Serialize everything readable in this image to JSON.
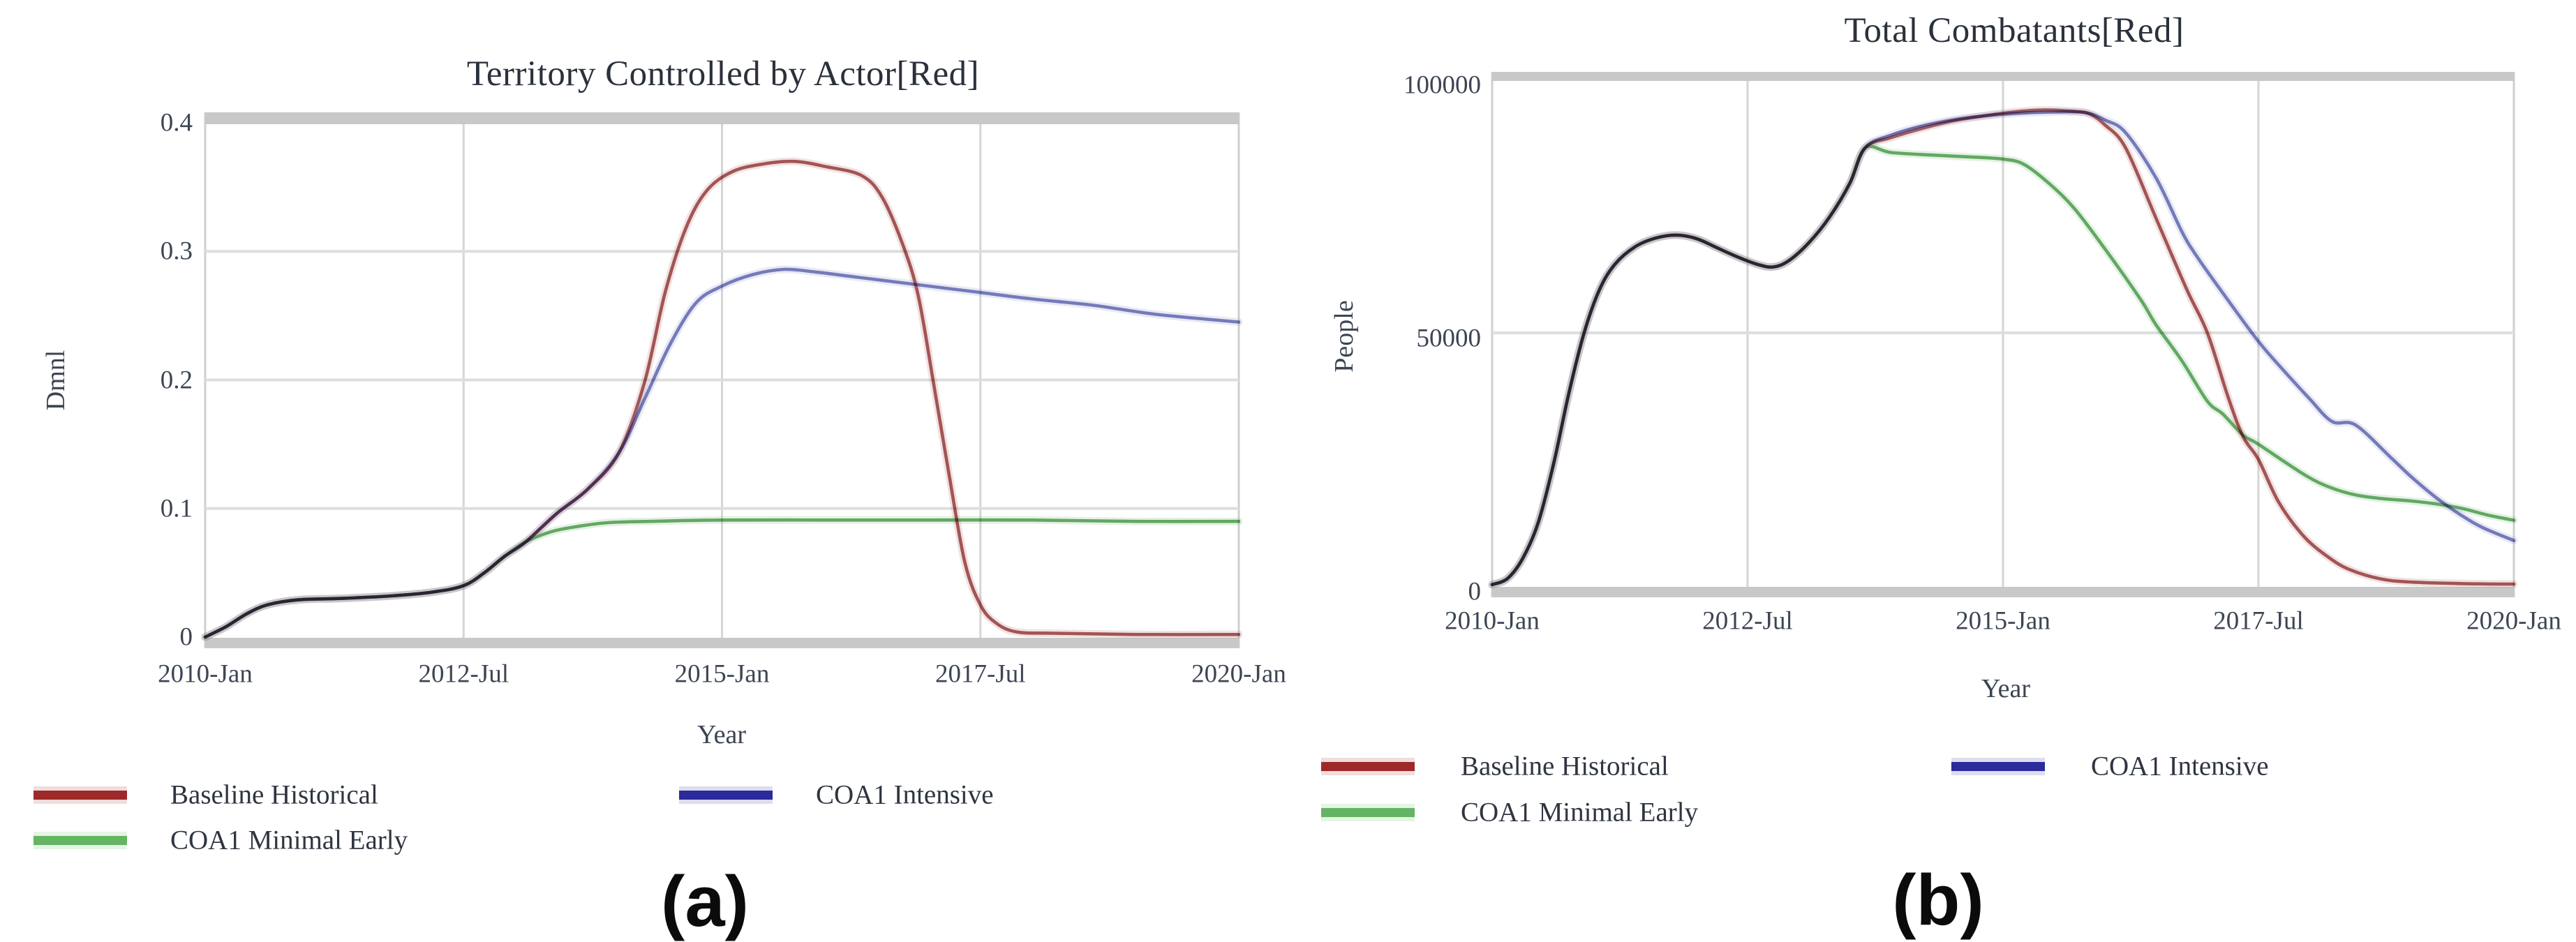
{
  "figure": {
    "background": "#ffffff",
    "grid_color_h": "#dedede",
    "grid_color_v": "#d5d5d5",
    "axis_band_color": "#c8c8c8",
    "frame_color": "#cfcfcf"
  },
  "chart_data": [
    {
      "id": "a",
      "type": "line",
      "title": "Territory Controlled by Actor[Red]",
      "caption": "(a)",
      "xlabel": "Year",
      "ylabel": "Dmnl",
      "xlim": [
        2010,
        2020
      ],
      "ylim": [
        0,
        0.4
      ],
      "grid": true,
      "legend_position": "below-left-two-columns",
      "xticks": [
        {
          "v": 2010,
          "label": "2010-Jan"
        },
        {
          "v": 2012.5,
          "label": "2012-Jul"
        },
        {
          "v": 2015,
          "label": "2015-Jan"
        },
        {
          "v": 2017.5,
          "label": "2017-Jul"
        },
        {
          "v": 2020,
          "label": "2020-Jan"
        }
      ],
      "yticks": [
        {
          "v": 0,
          "label": "0"
        },
        {
          "v": 0.1,
          "label": "0.1"
        },
        {
          "v": 0.2,
          "label": "0.2"
        },
        {
          "v": 0.3,
          "label": "0.3"
        },
        {
          "v": 0.4,
          "label": "0.4"
        }
      ],
      "draw_order": [
        2,
        0,
        1
      ],
      "series": [
        {
          "name": "Baseline Historical",
          "line_color": "#ad5f5f",
          "legend_color": "#9e2929",
          "points": [
            [
              2010,
              0
            ],
            [
              2010.2,
              0.008
            ],
            [
              2010.4,
              0.018
            ],
            [
              2010.6,
              0.025
            ],
            [
              2010.9,
              0.029
            ],
            [
              2011.3,
              0.03
            ],
            [
              2011.8,
              0.032
            ],
            [
              2012.2,
              0.035
            ],
            [
              2012.5,
              0.04
            ],
            [
              2012.7,
              0.05
            ],
            [
              2012.9,
              0.063
            ],
            [
              2013.1,
              0.074
            ],
            [
              2013.4,
              0.096
            ],
            [
              2013.7,
              0.115
            ],
            [
              2014,
              0.143
            ],
            [
              2014.25,
              0.198
            ],
            [
              2014.45,
              0.268
            ],
            [
              2014.65,
              0.318
            ],
            [
              2014.85,
              0.347
            ],
            [
              2015.1,
              0.362
            ],
            [
              2015.4,
              0.368
            ],
            [
              2015.7,
              0.37
            ],
            [
              2016,
              0.366
            ],
            [
              2016.35,
              0.359
            ],
            [
              2016.55,
              0.342
            ],
            [
              2016.75,
              0.305
            ],
            [
              2016.9,
              0.265
            ],
            [
              2017.05,
              0.196
            ],
            [
              2017.2,
              0.125
            ],
            [
              2017.35,
              0.058
            ],
            [
              2017.5,
              0.025
            ],
            [
              2017.65,
              0.011
            ],
            [
              2017.85,
              0.004
            ],
            [
              2018.2,
              0.003
            ],
            [
              2019,
              0.002
            ],
            [
              2020,
              0.002
            ]
          ]
        },
        {
          "name": "COA1 Intensive",
          "line_color": "#8085c2",
          "legend_color": "#2b2b9b",
          "points": [
            [
              2010,
              0
            ],
            [
              2010.2,
              0.008
            ],
            [
              2010.4,
              0.018
            ],
            [
              2010.6,
              0.025
            ],
            [
              2010.9,
              0.029
            ],
            [
              2011.3,
              0.03
            ],
            [
              2011.8,
              0.032
            ],
            [
              2012.2,
              0.035
            ],
            [
              2012.5,
              0.04
            ],
            [
              2012.7,
              0.05
            ],
            [
              2012.9,
              0.063
            ],
            [
              2013.1,
              0.074
            ],
            [
              2013.4,
              0.096
            ],
            [
              2013.7,
              0.115
            ],
            [
              2014,
              0.143
            ],
            [
              2014.25,
              0.185
            ],
            [
              2014.5,
              0.228
            ],
            [
              2014.75,
              0.26
            ],
            [
              2015,
              0.273
            ],
            [
              2015.3,
              0.282
            ],
            [
              2015.6,
              0.286
            ],
            [
              2015.9,
              0.284
            ],
            [
              2016.3,
              0.28
            ],
            [
              2017,
              0.273
            ],
            [
              2017.5,
              0.268
            ],
            [
              2018,
              0.263
            ],
            [
              2018.6,
              0.258
            ],
            [
              2019.2,
              0.251
            ],
            [
              2020,
              0.245
            ]
          ]
        },
        {
          "name": "COA1 Minimal Early",
          "line_color": "#6db26d",
          "legend_color": "#63b463",
          "points": [
            [
              2010,
              0
            ],
            [
              2010.2,
              0.008
            ],
            [
              2010.4,
              0.018
            ],
            [
              2010.6,
              0.025
            ],
            [
              2010.9,
              0.029
            ],
            [
              2011.3,
              0.03
            ],
            [
              2011.8,
              0.032
            ],
            [
              2012.2,
              0.035
            ],
            [
              2012.5,
              0.04
            ],
            [
              2012.7,
              0.05
            ],
            [
              2012.9,
              0.063
            ],
            [
              2013.1,
              0.074
            ],
            [
              2013.35,
              0.082
            ],
            [
              2013.6,
              0.086
            ],
            [
              2013.9,
              0.089
            ],
            [
              2014.3,
              0.09
            ],
            [
              2015,
              0.091
            ],
            [
              2016,
              0.091
            ],
            [
              2017,
              0.091
            ],
            [
              2018,
              0.091
            ],
            [
              2019,
              0.09
            ],
            [
              2020,
              0.09
            ]
          ]
        }
      ]
    },
    {
      "id": "b",
      "type": "line",
      "title": "Total Combatants[Red]",
      "caption": "(b)",
      "xlabel": "Year",
      "ylabel": "People",
      "xlim": [
        2010,
        2020
      ],
      "ylim": [
        0,
        100000
      ],
      "grid": true,
      "legend_position": "below-left-two-columns",
      "xticks": [
        {
          "v": 2010,
          "label": "2010-Jan"
        },
        {
          "v": 2012.5,
          "label": "2012-Jul"
        },
        {
          "v": 2015,
          "label": "2015-Jan"
        },
        {
          "v": 2017.5,
          "label": "2017-Jul"
        },
        {
          "v": 2020,
          "label": "2020-Jan"
        }
      ],
      "yticks": [
        {
          "v": 0,
          "label": "0"
        },
        {
          "v": 50000,
          "label": "50000"
        },
        {
          "v": 100000,
          "label": "100000"
        }
      ],
      "draw_order": [
        2,
        0,
        1
      ],
      "series": [
        {
          "name": "Baseline Historical",
          "line_color": "#ad5f5f",
          "legend_color": "#9e2929",
          "points": [
            [
              2010,
              300
            ],
            [
              2010.15,
              1500
            ],
            [
              2010.3,
              5500
            ],
            [
              2010.45,
              12500
            ],
            [
              2010.6,
              24000
            ],
            [
              2010.75,
              38000
            ],
            [
              2010.9,
              50000
            ],
            [
              2011.05,
              58500
            ],
            [
              2011.2,
              63500
            ],
            [
              2011.4,
              67000
            ],
            [
              2011.6,
              68700
            ],
            [
              2011.8,
              69300
            ],
            [
              2012,
              68600
            ],
            [
              2012.2,
              66800
            ],
            [
              2012.4,
              65000
            ],
            [
              2012.6,
              63500
            ],
            [
              2012.75,
              63000
            ],
            [
              2012.9,
              64200
            ],
            [
              2013.1,
              67800
            ],
            [
              2013.3,
              72800
            ],
            [
              2013.5,
              79500
            ],
            [
              2013.65,
              86500
            ],
            [
              2013.9,
              88500
            ],
            [
              2014.2,
              90300
            ],
            [
              2014.5,
              91800
            ],
            [
              2014.8,
              92800
            ],
            [
              2015.1,
              93600
            ],
            [
              2015.4,
              94000
            ],
            [
              2015.7,
              93700
            ],
            [
              2015.85,
              93200
            ],
            [
              2016,
              91000
            ],
            [
              2016.2,
              86500
            ],
            [
              2016.5,
              72500
            ],
            [
              2016.8,
              58500
            ],
            [
              2017,
              50000
            ],
            [
              2017.2,
              37500
            ],
            [
              2017.35,
              29500
            ],
            [
              2017.5,
              25000
            ],
            [
              2017.7,
              16500
            ],
            [
              2017.95,
              9700
            ],
            [
              2018.2,
              5500
            ],
            [
              2018.4,
              3200
            ],
            [
              2018.7,
              1400
            ],
            [
              2019,
              800
            ],
            [
              2019.5,
              500
            ],
            [
              2020,
              400
            ]
          ]
        },
        {
          "name": "COA1 Intensive",
          "line_color": "#8085c2",
          "legend_color": "#2b2b9b",
          "points": [
            [
              2010,
              300
            ],
            [
              2010.15,
              1500
            ],
            [
              2010.3,
              5500
            ],
            [
              2010.45,
              12500
            ],
            [
              2010.6,
              24000
            ],
            [
              2010.75,
              38000
            ],
            [
              2010.9,
              50000
            ],
            [
              2011.05,
              58500
            ],
            [
              2011.2,
              63500
            ],
            [
              2011.4,
              67000
            ],
            [
              2011.6,
              68700
            ],
            [
              2011.8,
              69300
            ],
            [
              2012,
              68600
            ],
            [
              2012.2,
              66800
            ],
            [
              2012.4,
              65000
            ],
            [
              2012.6,
              63500
            ],
            [
              2012.75,
              63000
            ],
            [
              2012.9,
              64200
            ],
            [
              2013.1,
              67800
            ],
            [
              2013.3,
              72800
            ],
            [
              2013.5,
              79500
            ],
            [
              2013.65,
              86500
            ],
            [
              2013.9,
              89000
            ],
            [
              2014.2,
              90800
            ],
            [
              2014.5,
              92000
            ],
            [
              2014.8,
              92800
            ],
            [
              2015.1,
              93300
            ],
            [
              2015.5,
              93600
            ],
            [
              2015.8,
              93500
            ],
            [
              2016,
              92000
            ],
            [
              2016.2,
              89500
            ],
            [
              2016.5,
              80500
            ],
            [
              2016.75,
              70000
            ],
            [
              2016.9,
              65000
            ],
            [
              2017.2,
              56500
            ],
            [
              2017.5,
              48300
            ],
            [
              2017.75,
              42500
            ],
            [
              2018,
              37000
            ],
            [
              2018.22,
              32500
            ],
            [
              2018.45,
              31800
            ],
            [
              2018.8,
              25300
            ],
            [
              2019,
              21500
            ],
            [
              2019.25,
              17300
            ],
            [
              2019.5,
              13800
            ],
            [
              2019.7,
              11500
            ],
            [
              2020,
              9000
            ]
          ]
        },
        {
          "name": "COA1 Minimal Early",
          "line_color": "#6db26d",
          "legend_color": "#63b463",
          "points": [
            [
              2010,
              300
            ],
            [
              2010.15,
              1500
            ],
            [
              2010.3,
              5500
            ],
            [
              2010.45,
              12500
            ],
            [
              2010.6,
              24000
            ],
            [
              2010.75,
              38000
            ],
            [
              2010.9,
              50000
            ],
            [
              2011.05,
              58500
            ],
            [
              2011.2,
              63500
            ],
            [
              2011.4,
              67000
            ],
            [
              2011.6,
              68700
            ],
            [
              2011.8,
              69300
            ],
            [
              2012,
              68600
            ],
            [
              2012.2,
              66800
            ],
            [
              2012.4,
              65000
            ],
            [
              2012.6,
              63500
            ],
            [
              2012.75,
              63000
            ],
            [
              2012.9,
              64200
            ],
            [
              2013.1,
              67800
            ],
            [
              2013.3,
              72800
            ],
            [
              2013.5,
              79500
            ],
            [
              2013.65,
              86500
            ],
            [
              2013.9,
              85600
            ],
            [
              2014.3,
              85100
            ],
            [
              2014.7,
              84700
            ],
            [
              2015,
              84300
            ],
            [
              2015.2,
              83300
            ],
            [
              2015.45,
              79500
            ],
            [
              2015.7,
              74500
            ],
            [
              2016,
              66500
            ],
            [
              2016.35,
              56500
            ],
            [
              2016.5,
              51500
            ],
            [
              2016.75,
              44500
            ],
            [
              2017,
              36500
            ],
            [
              2017.15,
              34000
            ],
            [
              2017.35,
              29800
            ],
            [
              2017.5,
              28000
            ],
            [
              2017.95,
              22000
            ],
            [
              2018.2,
              19500
            ],
            [
              2018.45,
              18000
            ],
            [
              2018.7,
              17300
            ],
            [
              2019,
              16800
            ],
            [
              2019.25,
              16200
            ],
            [
              2019.5,
              15300
            ],
            [
              2019.75,
              14000
            ],
            [
              2020,
              13000
            ]
          ]
        }
      ]
    }
  ]
}
